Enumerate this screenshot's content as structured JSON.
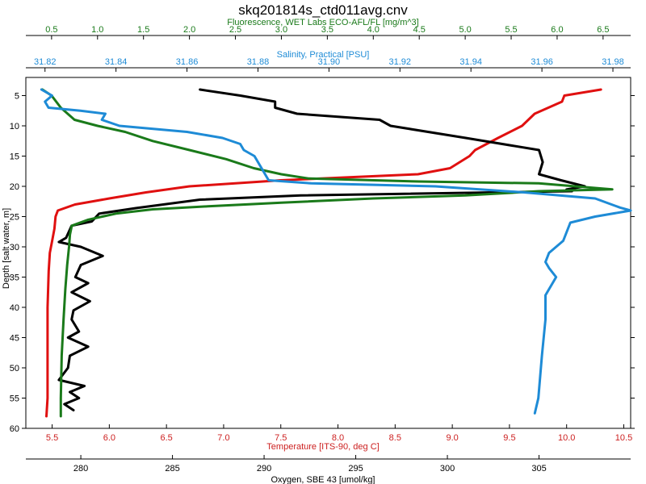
{
  "chart_data": {
    "type": "line",
    "title": "skq201814s_ctd011avg.cnv",
    "grid": false,
    "y_axis": {
      "label": "Depth [salt water, m]",
      "range": [
        60,
        2
      ],
      "ticks": [
        5,
        10,
        15,
        20,
        25,
        30,
        35,
        40,
        45,
        50,
        55,
        60
      ],
      "reversed": true
    },
    "x_axes": [
      {
        "id": "fluor",
        "label": "Fluorescence, WET Labs ECO-AFL/FL [mg/m^3]",
        "position": "top-1",
        "color": "#1a7a1a",
        "range": [
          0.22,
          6.8
        ],
        "ticks": [
          0.5,
          1.0,
          1.5,
          2.0,
          2.5,
          3.0,
          3.5,
          4.0,
          4.5,
          5.0,
          5.5,
          6.0,
          6.5
        ],
        "tick_labels": [
          "0.5",
          "1.0",
          "1.5",
          "2.0",
          "2.5",
          "3.0",
          "3.5",
          "4.0",
          "4.5",
          "5.0",
          "5.5",
          "6.0",
          "6.5"
        ]
      },
      {
        "id": "sal",
        "label": "Salinity, Practical [PSU]",
        "position": "top-2",
        "color": "#1e8bd6",
        "range": [
          31.8146,
          31.985
        ],
        "ticks": [
          31.82,
          31.84,
          31.86,
          31.88,
          31.9,
          31.92,
          31.94,
          31.96,
          31.98
        ],
        "tick_labels": [
          "31.82",
          "31.84",
          "31.86",
          "31.88",
          "31.90",
          "31.92",
          "31.94",
          "31.96",
          "31.98"
        ]
      },
      {
        "id": "temp",
        "label": "Temperature [ITS-90, deg C]",
        "position": "bottom-1",
        "color": "#cc1f1f",
        "range": [
          5.27,
          10.56
        ],
        "ticks": [
          5.5,
          6.0,
          6.5,
          7.0,
          7.5,
          8.0,
          8.5,
          9.0,
          9.5,
          10.0,
          10.5
        ],
        "tick_labels": [
          "5.5",
          "6.0",
          "6.5",
          "7.0",
          "7.5",
          "8.0",
          "8.5",
          "9.0",
          "9.5",
          "10.0",
          "10.5"
        ]
      },
      {
        "id": "oxy",
        "label": "Oxygen, SBE 43 [umol/kg]",
        "position": "bottom-2",
        "color": "#000000",
        "range": [
          277.0,
          310.0
        ],
        "ticks": [
          280,
          285,
          290,
          295,
          300,
          305
        ],
        "tick_labels": [
          "280",
          "285",
          "290",
          "295",
          "300",
          "305"
        ]
      }
    ],
    "series": [
      {
        "axis": "temp",
        "color": "#e01010",
        "points": [
          [
            10.3,
            4
          ],
          [
            9.98,
            5
          ],
          [
            9.96,
            6
          ],
          [
            9.72,
            8
          ],
          [
            9.61,
            10
          ],
          [
            9.4,
            12
          ],
          [
            9.2,
            14
          ],
          [
            9.15,
            15
          ],
          [
            8.98,
            17
          ],
          [
            8.7,
            18
          ],
          [
            7.5,
            19
          ],
          [
            6.7,
            20
          ],
          [
            6.32,
            21
          ],
          [
            6.0,
            22
          ],
          [
            5.7,
            23
          ],
          [
            5.55,
            24
          ],
          [
            5.53,
            25
          ],
          [
            5.52,
            27
          ],
          [
            5.5,
            29
          ],
          [
            5.48,
            31
          ],
          [
            5.47,
            34
          ],
          [
            5.46,
            40
          ],
          [
            5.46,
            48
          ],
          [
            5.46,
            55
          ],
          [
            5.45,
            58
          ]
        ]
      },
      {
        "axis": "oxy",
        "color": "#000000",
        "points": [
          [
            286.5,
            4
          ],
          [
            288.7,
            5
          ],
          [
            290.6,
            6
          ],
          [
            290.6,
            7
          ],
          [
            291.8,
            8
          ],
          [
            296.3,
            9
          ],
          [
            296.9,
            10
          ],
          [
            301.0,
            12
          ],
          [
            305.0,
            14
          ],
          [
            305.2,
            16
          ],
          [
            305.0,
            18
          ],
          [
            306.2,
            19
          ],
          [
            307.5,
            20
          ],
          [
            306.5,
            20.5
          ],
          [
            306.8,
            20.8
          ],
          [
            292.0,
            21.5
          ],
          [
            286.5,
            22.2
          ],
          [
            283.0,
            23.6
          ],
          [
            281.0,
            24.5
          ],
          [
            280.6,
            25.8
          ],
          [
            279.5,
            26.5
          ],
          [
            279.2,
            28.5
          ],
          [
            278.8,
            29.2
          ],
          [
            280.0,
            30
          ],
          [
            281.2,
            31.5
          ],
          [
            280.0,
            33
          ],
          [
            279.7,
            35
          ],
          [
            280.4,
            36
          ],
          [
            279.5,
            37.5
          ],
          [
            280.5,
            39
          ],
          [
            279.6,
            40.5
          ],
          [
            279.5,
            42
          ],
          [
            279.9,
            44
          ],
          [
            279.3,
            45
          ],
          [
            280.4,
            46.5
          ],
          [
            279.4,
            48
          ],
          [
            279.3,
            50
          ],
          [
            278.8,
            52
          ],
          [
            280.2,
            53
          ],
          [
            279.4,
            54
          ],
          [
            279.9,
            55
          ],
          [
            279.1,
            56
          ],
          [
            279.6,
            57
          ]
        ]
      },
      {
        "axis": "fluor",
        "color": "#1a7a1a",
        "points": [
          [
            0.4,
            4
          ],
          [
            0.5,
            5
          ],
          [
            0.6,
            7
          ],
          [
            0.75,
            9
          ],
          [
            1.0,
            10
          ],
          [
            1.3,
            11
          ],
          [
            1.6,
            12.5
          ],
          [
            2.0,
            14
          ],
          [
            2.4,
            15.5
          ],
          [
            2.7,
            17
          ],
          [
            3.0,
            18
          ],
          [
            3.3,
            18.7
          ],
          [
            4.5,
            19.2
          ],
          [
            5.8,
            19.5
          ],
          [
            6.6,
            20.5
          ],
          [
            5.8,
            20.8
          ],
          [
            5.0,
            21.5
          ],
          [
            4.0,
            22
          ],
          [
            3.0,
            22.7
          ],
          [
            2.2,
            23.3
          ],
          [
            1.6,
            23.8
          ],
          [
            1.2,
            24.5
          ],
          [
            0.9,
            25.5
          ],
          [
            0.72,
            26.5
          ],
          [
            0.7,
            28
          ],
          [
            0.69,
            30
          ],
          [
            0.67,
            33
          ],
          [
            0.65,
            37
          ],
          [
            0.63,
            42
          ],
          [
            0.61,
            48
          ],
          [
            0.6,
            55
          ],
          [
            0.6,
            58
          ]
        ]
      },
      {
        "axis": "sal",
        "color": "#1e8bd6",
        "points": [
          [
            31.819,
            4
          ],
          [
            31.822,
            5
          ],
          [
            31.82,
            6
          ],
          [
            31.821,
            7
          ],
          [
            31.83,
            7.5
          ],
          [
            31.837,
            8
          ],
          [
            31.836,
            9
          ],
          [
            31.841,
            10
          ],
          [
            31.86,
            11
          ],
          [
            31.87,
            12
          ],
          [
            31.875,
            13
          ],
          [
            31.876,
            14
          ],
          [
            31.879,
            15
          ],
          [
            31.88,
            16
          ],
          [
            31.881,
            17
          ],
          [
            31.882,
            18
          ],
          [
            31.883,
            19
          ],
          [
            31.895,
            19.5
          ],
          [
            31.93,
            20
          ],
          [
            31.955,
            21
          ],
          [
            31.975,
            22
          ],
          [
            31.982,
            23.5
          ],
          [
            31.985,
            24
          ],
          [
            31.975,
            25
          ],
          [
            31.968,
            26
          ],
          [
            31.966,
            29
          ],
          [
            31.962,
            31
          ],
          [
            31.961,
            32.5
          ],
          [
            31.962,
            33.5
          ],
          [
            31.964,
            35
          ],
          [
            31.963,
            36
          ],
          [
            31.961,
            38
          ],
          [
            31.961,
            42
          ],
          [
            31.96,
            48
          ],
          [
            31.959,
            55
          ],
          [
            31.958,
            57.5
          ]
        ]
      }
    ]
  }
}
